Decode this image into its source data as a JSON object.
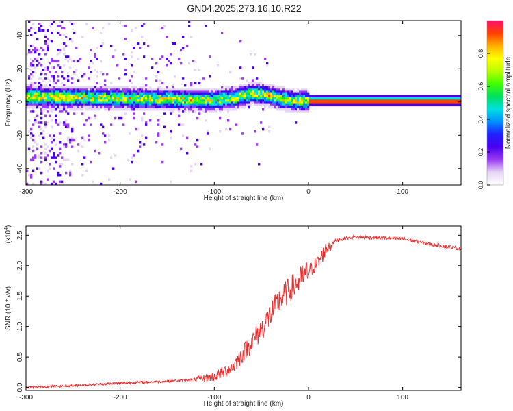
{
  "title": "GN04.2025.273.16.10.R22",
  "chart_data": [
    {
      "type": "heatmap",
      "xlabel": "Height of straight line (km)",
      "ylabel": "Frequency (Hz)",
      "xlim": [
        -300,
        162
      ],
      "ylim": [
        -50,
        49
      ],
      "xticks": [
        -300,
        -200,
        -100,
        0,
        100
      ],
      "yticks": [
        -40,
        -20,
        0,
        20,
        40
      ],
      "colorbar": {
        "label": "Normalized spectral amplitude",
        "range": [
          0,
          1
        ],
        "ticks": [
          "0.0",
          "0.2",
          "0.4",
          "0.6",
          "0.8"
        ],
        "colors": [
          "#ffffff",
          "#e6d6f6",
          "#9b3cf2",
          "#4a00f0",
          "#2020ff",
          "#0090ff",
          "#00e0e0",
          "#00e060",
          "#40ff00",
          "#b8ff00",
          "#ffff00",
          "#ffb000",
          "#ff4000",
          "#ff1070"
        ]
      },
      "ridge": {
        "x": [
          -300,
          -250,
          -200,
          -150,
          -120,
          -100,
          -80,
          -60,
          -50,
          -40,
          -30,
          -20,
          -10,
          0,
          50,
          100,
          162
        ],
        "freq": [
          3,
          2.5,
          2,
          1.5,
          1,
          1,
          2,
          5,
          4.5,
          3.5,
          2,
          1,
          0.5,
          0.5,
          0.5,
          0.5,
          0.5
        ]
      }
    },
    {
      "type": "line",
      "xlabel": "Height of straight line (km)",
      "ylabel": "SNR (10 * v/v)",
      "multiplier": "(x10",
      "multiplier_exp": "4",
      "xlim": [
        -300,
        162
      ],
      "ylim": [
        -0.05,
        2.65
      ],
      "xticks": [
        -300,
        -200,
        -100,
        0,
        100
      ],
      "yticks": [
        "0.0",
        "0.5",
        "1.0",
        "1.5",
        "2.0",
        "2.5"
      ],
      "color": "#e83030",
      "envelope": {
        "x": [
          -300,
          -250,
          -200,
          -150,
          -120,
          -100,
          -90,
          -80,
          -70,
          -60,
          -50,
          -40,
          -30,
          -20,
          -10,
          0,
          10,
          20,
          30,
          40,
          50,
          70,
          100,
          130,
          162
        ],
        "y": [
          0.0,
          0.03,
          0.07,
          0.1,
          0.13,
          0.18,
          0.25,
          0.35,
          0.55,
          0.75,
          0.95,
          1.2,
          1.45,
          1.6,
          1.75,
          1.9,
          2.05,
          2.3,
          2.42,
          2.45,
          2.47,
          2.46,
          2.44,
          2.35,
          2.28
        ]
      }
    }
  ]
}
